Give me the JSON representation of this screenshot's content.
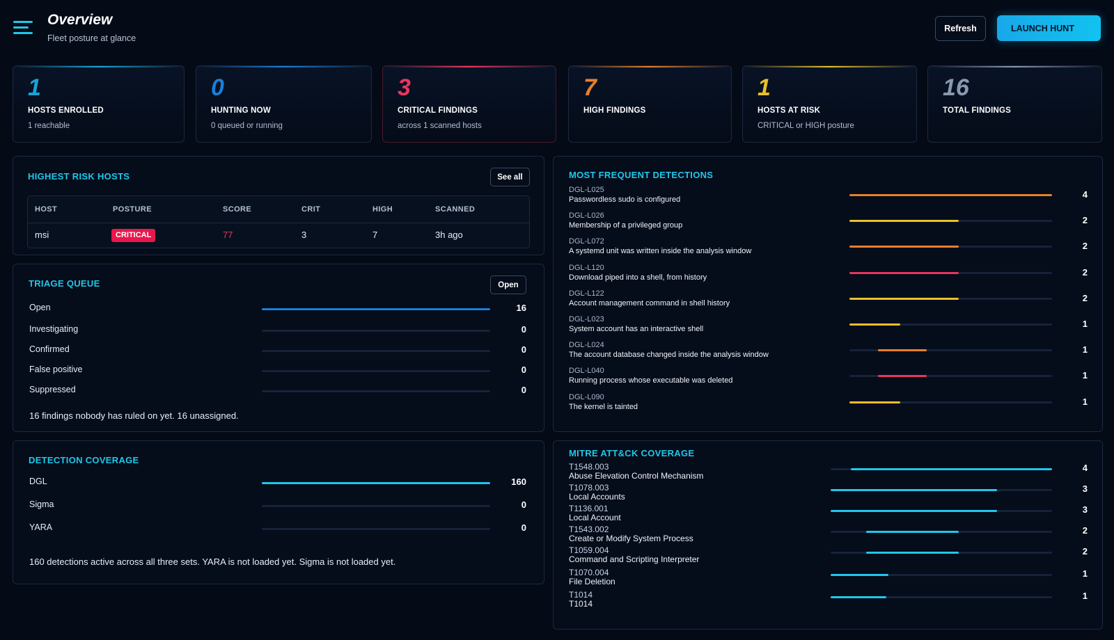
{
  "header": {
    "title": "Overview",
    "subtitle": "Fleet posture at glance",
    "refresh_label": "Refresh",
    "launch_label": "LAUNCH HUNT"
  },
  "stats": [
    {
      "value": "1",
      "label": "HOSTS ENROLLED",
      "sub": "1 reachable",
      "color": "#1aa4d8"
    },
    {
      "value": "0",
      "label": "HUNTING NOW",
      "sub": "0 queued or running",
      "color": "#1a7ed8"
    },
    {
      "value": "3",
      "label": "CRITICAL FINDINGS",
      "sub": "across 1 scanned hosts",
      "color": "#e8365c"
    },
    {
      "value": "7",
      "label": "HIGH FINDINGS",
      "sub": "",
      "color": "#e8802a"
    },
    {
      "value": "1",
      "label": "HOSTS AT RISK",
      "sub": "CRITICAL or HIGH posture",
      "color": "#e8c02a"
    },
    {
      "value": "16",
      "label": "TOTAL FINDINGS",
      "sub": "",
      "color": "#8899b0"
    }
  ],
  "risk_hosts": {
    "title": "HIGHEST RISK HOSTS",
    "button": "See all",
    "columns": [
      "HOST",
      "POSTURE",
      "SCORE",
      "CRIT",
      "HIGH",
      "SCANNED"
    ],
    "rows": [
      {
        "host": "msi",
        "posture": "CRITICAL",
        "score": "77",
        "crit": "3",
        "high": "7",
        "scanned": "3h ago"
      }
    ]
  },
  "triage": {
    "title": "TRIAGE QUEUE",
    "button": "Open",
    "accent": "#1a7ed8",
    "items": [
      {
        "label": "Open",
        "value": 16,
        "fraction": 1.0
      },
      {
        "label": "Investigating",
        "value": 0,
        "fraction": 0
      },
      {
        "label": "Confirmed",
        "value": 0,
        "fraction": 0
      },
      {
        "label": "False positive",
        "value": 0,
        "fraction": 0
      },
      {
        "label": "Suppressed",
        "value": 0,
        "fraction": 0
      }
    ],
    "note": "16 findings nobody has ruled on yet. 16 unassigned."
  },
  "coverage": {
    "title": "DETECTION COVERAGE",
    "accent": "#1fc8ea",
    "items": [
      {
        "label": "DGL",
        "value": 160,
        "fraction": 1.0
      },
      {
        "label": "Sigma",
        "value": 0,
        "fraction": 0
      },
      {
        "label": "YARA",
        "value": 0,
        "fraction": 0
      }
    ],
    "note": "160 detections active across all three sets. YARA is not loaded yet. Sigma is not loaded yet."
  },
  "detections": {
    "title": "MOST FREQUENT DETECTIONS",
    "items": [
      {
        "code": "DGL-L025",
        "name": "Passwordless sudo is configured",
        "value": 4,
        "color": "#e8802a",
        "start": 0,
        "end": 1.0
      },
      {
        "code": "DGL-L026",
        "name": "Membership of a privileged group",
        "value": 2,
        "color": "#e8c02a",
        "start": 0,
        "end": 0.54
      },
      {
        "code": "DGL-L072",
        "name": "A systemd unit was written inside the analysis window",
        "value": 2,
        "color": "#e8802a",
        "start": 0,
        "end": 0.54
      },
      {
        "code": "DGL-L120",
        "name": "Download piped into a shell, from history",
        "value": 2,
        "color": "#e8365c",
        "start": 0,
        "end": 0.54
      },
      {
        "code": "DGL-L122",
        "name": "Account management command in shell history",
        "value": 2,
        "color": "#e8c02a",
        "start": 0,
        "end": 0.54
      },
      {
        "code": "DGL-L023",
        "name": "System account has an interactive shell",
        "value": 1,
        "color": "#e8c02a",
        "start": 0,
        "end": 0.25
      },
      {
        "code": "DGL-L024",
        "name": "The account database changed inside the analysis window",
        "value": 1,
        "color": "#e8802a",
        "start": 0.14,
        "end": 0.38
      },
      {
        "code": "DGL-L040",
        "name": "Running process whose executable was deleted",
        "value": 1,
        "color": "#e8365c",
        "start": 0.14,
        "end": 0.38
      },
      {
        "code": "DGL-L090",
        "name": "The kernel is tainted",
        "value": 1,
        "color": "#e8c02a",
        "start": 0,
        "end": 0.25
      }
    ]
  },
  "mitre": {
    "title": "MITRE ATT&CK COVERAGE",
    "accent": "#1fc8ea",
    "items": [
      {
        "id": "T1548.003",
        "name": "Abuse Elevation Control Mechanism",
        "value": 4,
        "start": 0.09,
        "end": 1.0
      },
      {
        "id": "T1078.003",
        "name": "Local Accounts",
        "value": 3,
        "start": 0,
        "end": 0.75
      },
      {
        "id": "T1136.001",
        "name": "Local Account",
        "value": 3,
        "start": 0,
        "end": 0.75
      },
      {
        "id": "T1543.002",
        "name": "Create or Modify System Process",
        "value": 2,
        "start": 0.16,
        "end": 0.58
      },
      {
        "id": "T1059.004",
        "name": "Command and Scripting Interpreter",
        "value": 2,
        "start": 0.16,
        "end": 0.58
      },
      {
        "id": "T1070.004",
        "name": "File Deletion",
        "value": 1,
        "start": 0,
        "end": 0.26
      },
      {
        "id": "T1014",
        "name": "T1014",
        "value": 1,
        "start": 0,
        "end": 0.25
      }
    ]
  }
}
